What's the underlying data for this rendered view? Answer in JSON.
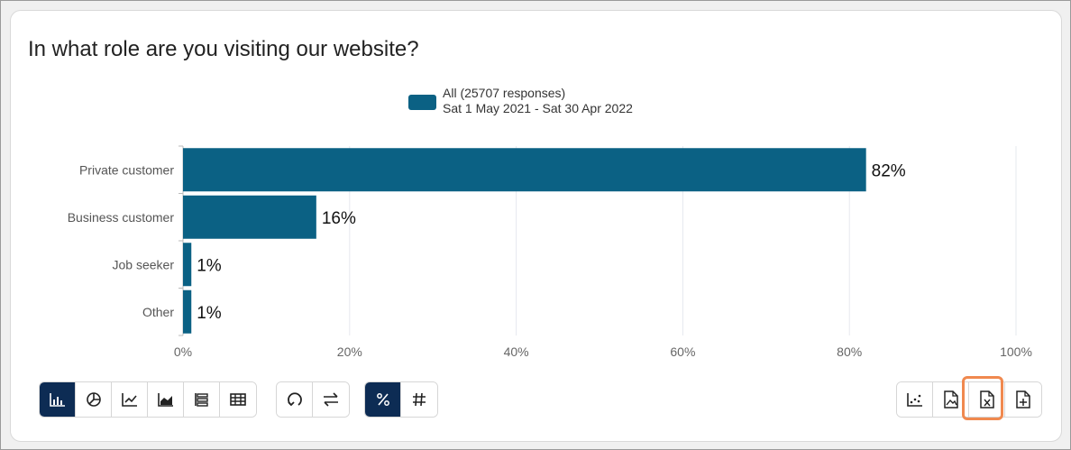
{
  "title": "In what role are you visiting our website?",
  "legend": {
    "line1": "All (25707 responses)",
    "line2": "Sat 1 May 2021 - Sat 30 Apr 2022",
    "color": "#0b6184"
  },
  "chart_data": {
    "type": "bar",
    "orientation": "horizontal",
    "categories": [
      "Private customer",
      "Business customer",
      "Job seeker",
      "Other"
    ],
    "values": [
      82,
      16,
      1,
      1
    ],
    "value_labels": [
      "82%",
      "16%",
      "1%",
      "1%"
    ],
    "xlim": [
      0,
      100
    ],
    "xticks": [
      "0%",
      "20%",
      "40%",
      "60%",
      "80%",
      "100%"
    ],
    "grid": true,
    "bar_color": "#0b6184"
  },
  "toolbar": {
    "chart_types": [
      "bar-chart-icon",
      "pie-chart-icon",
      "line-chart-icon",
      "area-chart-icon",
      "stacked-list-icon",
      "table-icon"
    ],
    "transforms": [
      "refresh-icon",
      "swap-icon"
    ],
    "value_modes": [
      "percent-icon",
      "hash-icon"
    ],
    "exports": [
      "scatter-export-icon",
      "image-export-icon",
      "excel-export-icon",
      "add-export-icon"
    ],
    "active_color": "#0d2c54",
    "highlight_color": "#f0894f"
  }
}
